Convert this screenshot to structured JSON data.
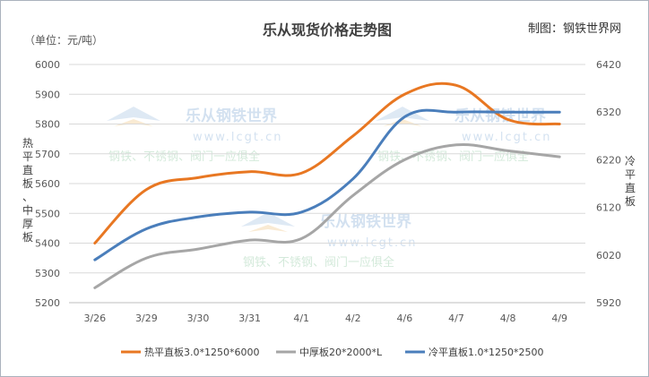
{
  "chart_data": {
    "type": "line",
    "title": "乐从现货价格走势图",
    "source": "制图：钢铁世界网",
    "unit": "（单位：元/吨）",
    "ylabel_left": "热平直板、中厚板",
    "ylabel_right": "冷平直板",
    "categories": [
      "3/26",
      "3/29",
      "3/30",
      "3/31",
      "4/1",
      "4/2",
      "4/6",
      "4/7",
      "4/8",
      "4/9"
    ],
    "y_left": {
      "min": 5200,
      "max": 6000,
      "ticks": [
        "6000",
        "5900",
        "5800",
        "5700",
        "5600",
        "5500",
        "5400",
        "5300",
        "5200"
      ]
    },
    "y_right": {
      "min": 5920,
      "max": 6420,
      "ticks": [
        "6420",
        "6320",
        "6220",
        "6120",
        "6020",
        "5920"
      ]
    },
    "grid": true,
    "legend_position": "bottom",
    "series": [
      {
        "name": "热平直板3.0*1250*6000",
        "axis": "left",
        "color": "#E87722",
        "values": [
          5400,
          5580,
          5620,
          5640,
          5635,
          5760,
          5900,
          5930,
          5815,
          5800
        ]
      },
      {
        "name": "中厚板20*2000*L",
        "axis": "left",
        "color": "#A6A6A6",
        "values": [
          5250,
          5350,
          5380,
          5410,
          5415,
          5560,
          5680,
          5730,
          5710,
          5690
        ]
      },
      {
        "name": "冷平直板1.0*1250*2500",
        "axis": "right",
        "color": "#4A7EBB",
        "values": [
          6010,
          6075,
          6100,
          6110,
          6110,
          6180,
          6310,
          6320,
          6320,
          6320
        ]
      }
    ],
    "watermark": {
      "name": "乐从钢铁世界",
      "url": "www.lcgt.cn",
      "slogan": "钢铁、不锈钢、阀门一应俱全"
    }
  }
}
